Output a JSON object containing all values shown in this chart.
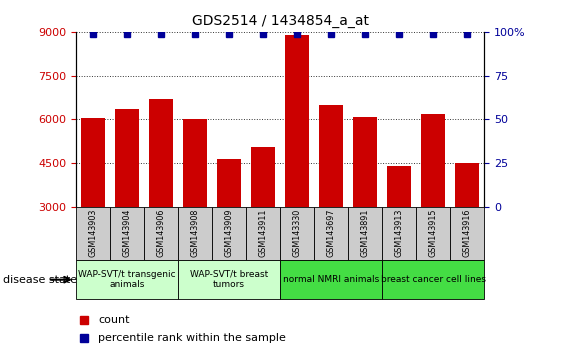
{
  "title": "GDS2514 / 1434854_a_at",
  "samples": [
    "GSM143903",
    "GSM143904",
    "GSM143906",
    "GSM143908",
    "GSM143909",
    "GSM143911",
    "GSM143330",
    "GSM143697",
    "GSM143891",
    "GSM143913",
    "GSM143915",
    "GSM143916"
  ],
  "counts": [
    6050,
    6350,
    6700,
    6000,
    4650,
    5050,
    8900,
    6500,
    6100,
    4400,
    6200,
    4500
  ],
  "percentile_value": 99,
  "bar_color": "#cc0000",
  "percentile_color": "#000099",
  "ylim_left": [
    3000,
    9000
  ],
  "ylim_right": [
    0,
    100
  ],
  "yticks_left": [
    3000,
    4500,
    6000,
    7500,
    9000
  ],
  "yticks_right": [
    0,
    25,
    50,
    75,
    100
  ],
  "ytick_labels_right": [
    "0",
    "25",
    "50",
    "75",
    "100%"
  ],
  "groups": [
    {
      "label": "WAP-SVT/t transgenic\nanimals",
      "start": 0,
      "end": 3,
      "color": "#ccffcc"
    },
    {
      "label": "WAP-SVT/t breast\ntumors",
      "start": 3,
      "end": 6,
      "color": "#ccffcc"
    },
    {
      "label": "normal NMRI animals",
      "start": 6,
      "end": 9,
      "color": "#44dd44"
    },
    {
      "label": "breast cancer cell lines",
      "start": 9,
      "end": 12,
      "color": "#44dd44"
    }
  ],
  "disease_state_label": "disease state",
  "legend_count_label": "count",
  "legend_percentile_label": "percentile rank within the sample",
  "grid_color": "#333333",
  "tick_box_color": "#cccccc",
  "background_color": "#ffffff"
}
